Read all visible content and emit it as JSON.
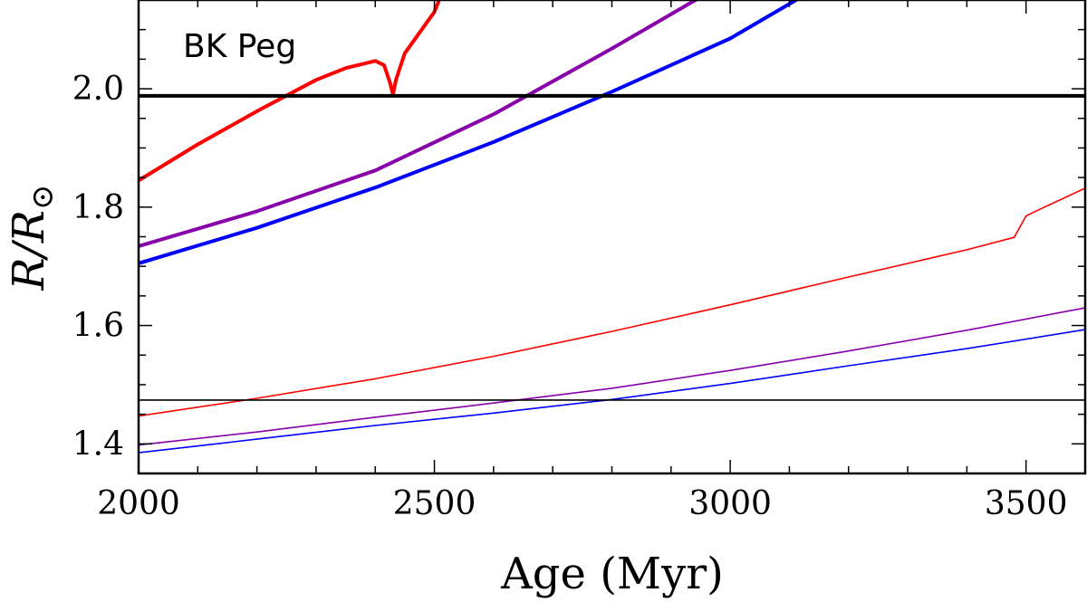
{
  "chart_data": {
    "type": "line",
    "title": "",
    "annotation": "BK Peg",
    "xlabel": "Age (Myr)",
    "ylabel_main": "R/R",
    "ylabel_sub": "⊙",
    "xlim": [
      2000,
      3600
    ],
    "ylim": [
      1.35,
      2.15
    ],
    "xticks": [
      2000,
      2500,
      3000,
      3500
    ],
    "yticks": [
      1.4,
      1.6,
      1.8,
      2.0
    ],
    "xtick_labels": [
      "2000",
      "2500",
      "3000",
      "3500"
    ],
    "ytick_labels": [
      "1.4",
      "1.6",
      "1.8",
      "2.0"
    ],
    "series": [
      {
        "name": "primary-model-red",
        "color": "#ff0000",
        "weight": "thick",
        "x": [
          2000,
          2100,
          2200,
          2300,
          2350,
          2400,
          2415,
          2425,
          2430,
          2435,
          2450,
          2500,
          2510
        ],
        "y": [
          1.845,
          1.906,
          1.962,
          2.015,
          2.035,
          2.047,
          2.04,
          2.01,
          1.99,
          2.015,
          2.06,
          2.13,
          2.155
        ]
      },
      {
        "name": "primary-model-purple",
        "color": "#8800aa",
        "weight": "thick",
        "x": [
          2000,
          2200,
          2400,
          2600,
          2800,
          2950
        ],
        "y": [
          1.734,
          1.793,
          1.862,
          1.957,
          2.068,
          2.155
        ]
      },
      {
        "name": "primary-model-blue",
        "color": "#0000ff",
        "weight": "thick",
        "x": [
          2000,
          2200,
          2400,
          2600,
          2800,
          3000,
          3120
        ],
        "y": [
          1.705,
          1.765,
          1.833,
          1.91,
          1.995,
          2.085,
          2.155
        ]
      },
      {
        "name": "secondary-model-red",
        "color": "#ff0000",
        "weight": "thin",
        "x": [
          2000,
          2200,
          2400,
          2600,
          2800,
          3000,
          3200,
          3400,
          3480,
          3500,
          3510,
          3600
        ],
        "y": [
          1.447,
          1.477,
          1.51,
          1.548,
          1.59,
          1.635,
          1.682,
          1.728,
          1.749,
          1.785,
          1.79,
          1.832
        ]
      },
      {
        "name": "secondary-model-purple",
        "color": "#8800aa",
        "weight": "thin",
        "x": [
          2000,
          2200,
          2400,
          2600,
          2800,
          3000,
          3200,
          3400,
          3600
        ],
        "y": [
          1.398,
          1.42,
          1.445,
          1.469,
          1.494,
          1.524,
          1.557,
          1.592,
          1.63
        ]
      },
      {
        "name": "secondary-model-blue",
        "color": "#0000ff",
        "weight": "thin",
        "x": [
          2000,
          2200,
          2400,
          2600,
          2800,
          3000,
          3200,
          3400,
          3600
        ],
        "y": [
          1.385,
          1.408,
          1.431,
          1.452,
          1.475,
          1.502,
          1.532,
          1.561,
          1.593
        ]
      }
    ],
    "reference_lines": [
      {
        "name": "primary-observed-radius",
        "y": 1.988,
        "color": "#000000",
        "weight": "thick"
      },
      {
        "name": "secondary-observed-radius",
        "y": 1.474,
        "color": "#000000",
        "weight": "thin"
      }
    ]
  }
}
